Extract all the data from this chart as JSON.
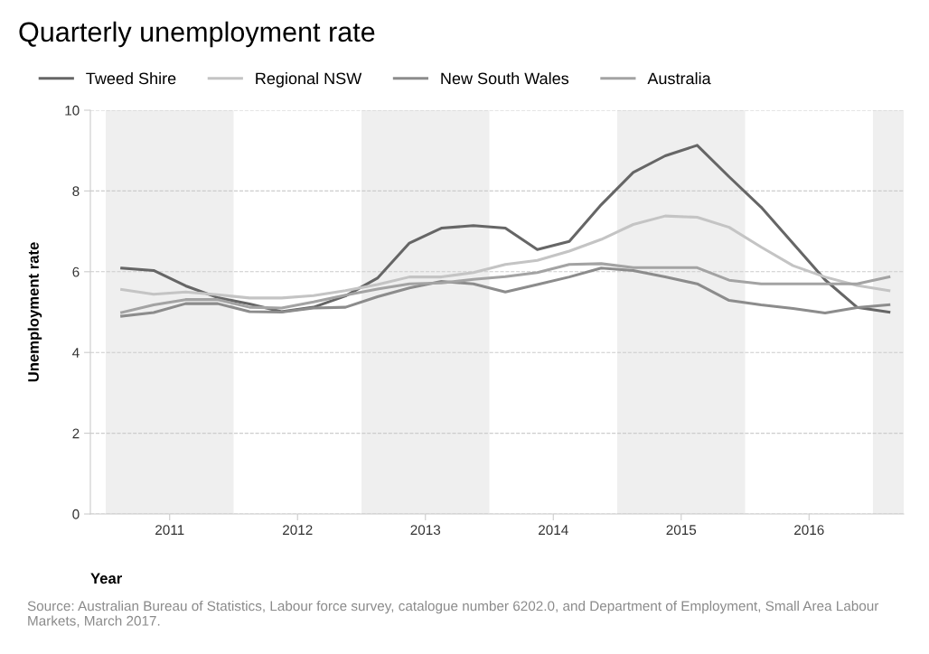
{
  "chart_data": {
    "type": "line",
    "title": "Quarterly unemployment rate",
    "xlabel": "Year",
    "ylabel": "Unemployment rate",
    "x": [
      2011.125,
      2011.375,
      2011.625,
      2011.875,
      2012.125,
      2012.375,
      2012.625,
      2012.875,
      2013.125,
      2013.375,
      2013.625,
      2013.875,
      2014.125,
      2014.375,
      2014.625,
      2014.875,
      2015.125,
      2015.375,
      2015.625,
      2015.875,
      2016.125,
      2016.375,
      2016.625,
      2016.875,
      2017.125
    ],
    "series": [
      {
        "name": "Tweed Shire",
        "color": "#666666",
        "values": [
          6.09,
          6.03,
          5.65,
          5.36,
          5.2,
          5.01,
          5.12,
          5.4,
          5.84,
          6.71,
          7.08,
          7.14,
          7.08,
          6.55,
          6.75,
          7.66,
          8.46,
          8.87,
          9.13,
          8.35,
          7.6,
          6.7,
          5.8,
          5.12,
          5.0
        ]
      },
      {
        "name": "Regional NSW",
        "color": "#c4c4c4",
        "values": [
          5.56,
          5.44,
          5.5,
          5.43,
          5.35,
          5.35,
          5.41,
          5.53,
          5.68,
          5.87,
          5.87,
          5.98,
          6.18,
          6.28,
          6.51,
          6.8,
          7.17,
          7.38,
          7.35,
          7.1,
          6.61,
          6.15,
          5.87,
          5.66,
          5.53
        ]
      },
      {
        "name": "New South Wales",
        "color": "#8c8c8c",
        "values": [
          4.9,
          4.99,
          5.21,
          5.21,
          5.01,
          5.0,
          5.1,
          5.12,
          5.38,
          5.6,
          5.76,
          5.7,
          5.5,
          5.68,
          5.87,
          6.09,
          6.03,
          5.87,
          5.7,
          5.29,
          5.18,
          5.09,
          4.98,
          5.11,
          5.18
        ]
      },
      {
        "name": "Australia",
        "color": "#a3a3a3",
        "values": [
          4.99,
          5.18,
          5.31,
          5.31,
          5.12,
          5.1,
          5.25,
          5.42,
          5.57,
          5.7,
          5.72,
          5.81,
          5.88,
          5.98,
          6.18,
          6.2,
          6.1,
          6.1,
          6.1,
          5.79,
          5.7,
          5.7,
          5.7,
          5.7,
          5.87
        ]
      }
    ],
    "xlim": [
      2010.88,
      2017.24
    ],
    "xticks": [
      {
        "value": 2011.5,
        "label": "2011"
      },
      {
        "value": 2012.5,
        "label": "2012"
      },
      {
        "value": 2013.5,
        "label": "2013"
      },
      {
        "value": 2014.5,
        "label": "2014"
      },
      {
        "value": 2015.5,
        "label": "2015"
      },
      {
        "value": 2016.5,
        "label": "2016"
      }
    ],
    "ylim": [
      0,
      10
    ],
    "yticks": [
      0,
      2,
      4,
      6,
      8,
      10
    ],
    "bands": [
      {
        "axis": "x",
        "from": 2011,
        "to": 2012,
        "color": "#efefef"
      },
      {
        "axis": "x",
        "from": 2013,
        "to": 2014,
        "color": "#efefef"
      },
      {
        "axis": "x",
        "from": 2015,
        "to": 2016,
        "color": "#efefef"
      },
      {
        "axis": "x",
        "from": 2017,
        "to": 2017.24,
        "color": "#efefef"
      }
    ],
    "grid": "y",
    "legend": "top left",
    "marker": "none",
    "line_style": "solid",
    "annotations": [
      "Source: Australian Bureau of Statistics, Labour force survey, catalogue number 6202.0, and Department of Employment, Small Area Labour Markets, March 2017."
    ]
  }
}
